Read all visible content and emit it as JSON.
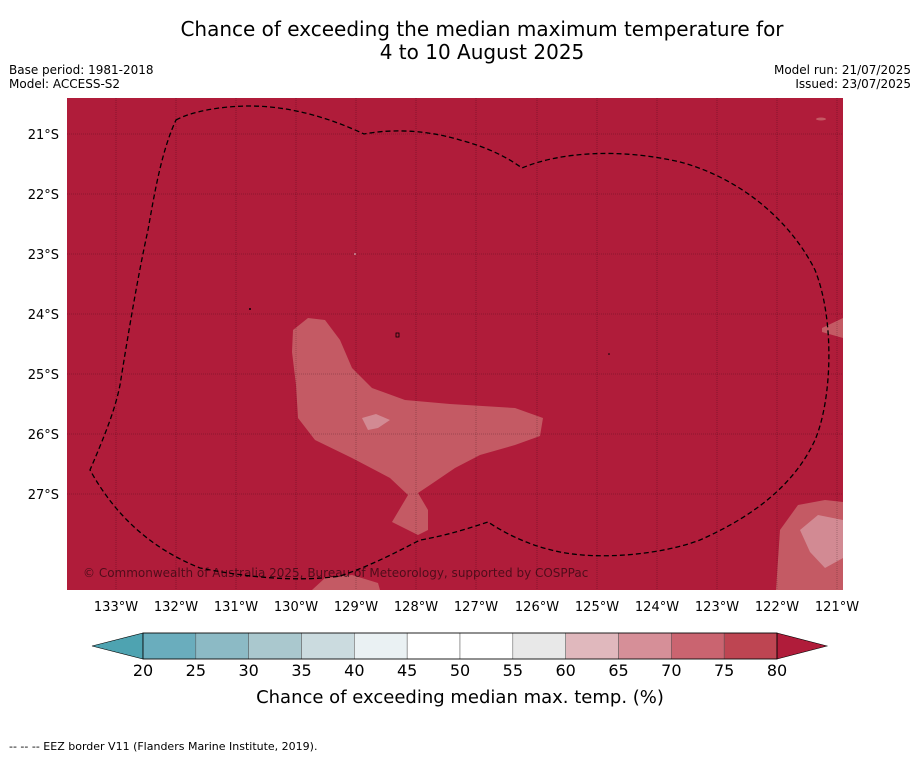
{
  "title": {
    "line1": "Chance of exceeding the median maximum temperature for",
    "line2": "4 to 10 August 2025"
  },
  "meta": {
    "base_period": "Base period: 1981-2018",
    "model": "Model: ACCESS-S2",
    "model_run": "Model run: 21/07/2025",
    "issued": "Issued: 23/07/2025"
  },
  "map": {
    "lat_labels": [
      "21°S",
      "22°S",
      "23°S",
      "24°S",
      "25°S",
      "26°S",
      "27°S"
    ],
    "lon_labels": [
      "133°W",
      "132°W",
      "131°W",
      "130°W",
      "129°W",
      "128°W",
      "127°W",
      "126°W",
      "125°W",
      "124°W",
      "123°W",
      "122°W",
      "121°W"
    ],
    "copyright": "© Commonwealth of Australia 2025, Bureau of Meteorology, supported by COSPPac",
    "colors": {
      "above_80": "#b01c3a",
      "75_80": "#c0444f",
      "70_75": "#c45a64",
      "65_70": "#d28a93"
    }
  },
  "colorbar": {
    "ticks": [
      "20",
      "25",
      "30",
      "35",
      "40",
      "45",
      "50",
      "55",
      "60",
      "65",
      "70",
      "75",
      "80"
    ],
    "label": "Chance of exceeding median max. temp. (%)",
    "colors": [
      "#6aadbd",
      "#8cbac5",
      "#aac8ce",
      "#cbdbdf",
      "#eaf1f3",
      "#ffffff",
      "#ffffff",
      "#e8e8e8",
      "#e0b8bd",
      "#d68f98",
      "#ca6470",
      "#be4552"
    ],
    "under_color": "#4ea3b1",
    "over_color": "#b01c3a"
  },
  "footnote": "-- -- -- EEZ border V11 (Flanders Marine Institute, 2019)."
}
